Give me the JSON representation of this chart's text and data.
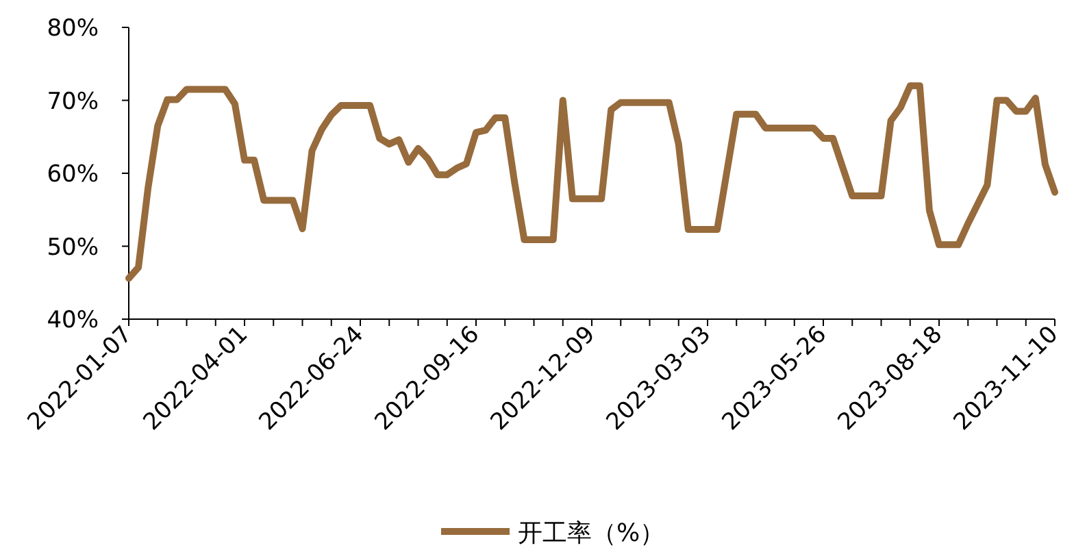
{
  "chart_data": {
    "type": "line",
    "legend": "bottom",
    "grid": false,
    "marker": "none",
    "line_style": "solid",
    "xlim": [
      "2022-01-07",
      "2023-11-10"
    ],
    "xticks": [
      "2022-01-07",
      {
        "value": "2022-01-28",
        "label": null
      },
      {
        "value": "2022-02-18",
        "label": null
      },
      {
        "value": "2022-03-11",
        "label": null
      },
      "2022-04-01",
      {
        "value": "2022-04-22",
        "label": null
      },
      {
        "value": "2022-05-13",
        "label": null
      },
      {
        "value": "2022-06-03",
        "label": null
      },
      "2022-06-24",
      {
        "value": "2022-07-15",
        "label": null
      },
      {
        "value": "2022-08-05",
        "label": null
      },
      {
        "value": "2022-08-26",
        "label": null
      },
      "2022-09-16",
      {
        "value": "2022-10-07",
        "label": null
      },
      {
        "value": "2022-10-28",
        "label": null
      },
      {
        "value": "2022-11-18",
        "label": null
      },
      "2022-12-09",
      {
        "value": "2022-12-30",
        "label": null
      },
      {
        "value": "2023-01-20",
        "label": null
      },
      {
        "value": "2023-02-10",
        "label": null
      },
      "2023-03-03",
      {
        "value": "2023-03-24",
        "label": null
      },
      {
        "value": "2023-04-14",
        "label": null
      },
      {
        "value": "2023-05-05",
        "label": null
      },
      "2023-05-26",
      {
        "value": "2023-06-16",
        "label": null
      },
      {
        "value": "2023-07-07",
        "label": null
      },
      {
        "value": "2023-07-28",
        "label": null
      },
      "2023-08-18",
      {
        "value": "2023-09-08",
        "label": null
      },
      {
        "value": "2023-09-29",
        "label": null
      },
      {
        "value": "2023-10-20",
        "label": null
      },
      "2023-11-10"
    ],
    "ylim": [
      40,
      80
    ],
    "yticks": [
      {
        "value": 40,
        "label": "40%"
      },
      {
        "value": 50,
        "label": "50%"
      },
      {
        "value": 60,
        "label": "60%"
      },
      {
        "value": 70,
        "label": "70%"
      },
      {
        "value": 80,
        "label": "80%"
      }
    ],
    "x": [
      "2022-01-07",
      "2022-01-14",
      "2022-01-21",
      "2022-01-28",
      "2022-02-04",
      "2022-02-11",
      "2022-02-18",
      "2022-03-18",
      "2022-03-25",
      "2022-04-01",
      "2022-04-08",
      "2022-04-15",
      "2022-05-06",
      "2022-05-13",
      "2022-05-20",
      "2022-05-27",
      "2022-06-03",
      "2022-06-10",
      "2022-07-01",
      "2022-07-08",
      "2022-07-15",
      "2022-07-22",
      "2022-07-29",
      "2022-08-05",
      "2022-08-12",
      "2022-08-19",
      "2022-08-26",
      "2022-09-02",
      "2022-09-09",
      "2022-09-16",
      "2022-09-23",
      "2022-09-30",
      "2022-10-07",
      "2022-10-14",
      "2022-10-21",
      "2022-11-11",
      "2022-11-18",
      "2022-11-25",
      "2022-12-16",
      "2022-12-23",
      "2022-12-30",
      "2023-02-03",
      "2023-02-10",
      "2023-02-17",
      "2023-03-10",
      "2023-03-24",
      "2023-04-07",
      "2023-04-14",
      "2023-05-19",
      "2023-05-26",
      "2023-06-02",
      "2023-06-16",
      "2023-07-07",
      "2023-07-14",
      "2023-07-21",
      "2023-07-28",
      "2023-08-04",
      "2023-08-11",
      "2023-08-18",
      "2023-09-01",
      "2023-09-08",
      "2023-09-22",
      "2023-09-29",
      "2023-10-06",
      "2023-10-13",
      "2023-10-20",
      "2023-10-27",
      "2023-11-03",
      "2023-11-10"
    ],
    "series": [
      {
        "name": "开工率（%）",
        "color": "#976b3c",
        "values": [
          45.6,
          47.1,
          58,
          66.5,
          70.1,
          70.1,
          71.5,
          71.5,
          69.5,
          61.8,
          61.8,
          56.3,
          56.3,
          52.4,
          63.1,
          66,
          68,
          69.3,
          69.3,
          64.8,
          64.0,
          64.6,
          61.5,
          63.4,
          62.0,
          59.8,
          59.8,
          60.7,
          61.3,
          65.6,
          65.9,
          67.6,
          67.6,
          58.7,
          50.9,
          50.9,
          70.0,
          56.5,
          56.5,
          68.7,
          69.7,
          69.7,
          64.0,
          52.3,
          52.3,
          68.1,
          68.1,
          66.2,
          66.2,
          64.8,
          64.8,
          56.9,
          56.9,
          67.2,
          69.0,
          72.0,
          72.0,
          54.9,
          50.2,
          50.2,
          53.1,
          58.4,
          70.0,
          70.0,
          68.5,
          68.5,
          70.3,
          61.2,
          57.4
        ]
      }
    ]
  }
}
